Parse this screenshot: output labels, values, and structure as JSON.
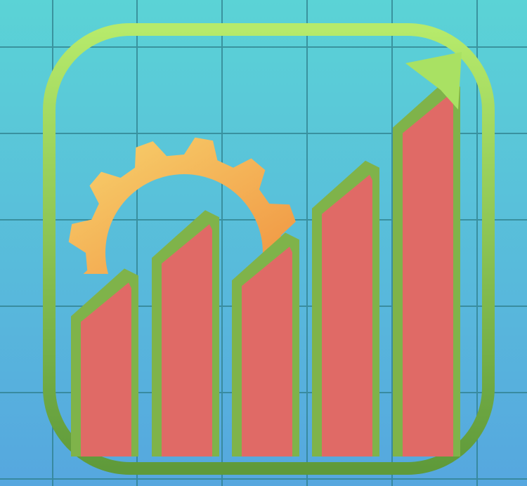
{
  "icon": {
    "name": "growth-chart-gear-app-icon",
    "background_gradient": [
      "#5bd3d6",
      "#56a7df"
    ],
    "grid_color": "#2f7f8c",
    "frame_gradient": [
      "#b6ea6b",
      "#5f9a3a"
    ],
    "bar_gradient": [
      "#7a1fe4",
      "#a54bb0",
      "#e06a66"
    ],
    "bar_cap_gradient": [
      "#b9ea6a",
      "#7fb34a"
    ],
    "gear_gradient": [
      "#f7d36e",
      "#f08a3a"
    ],
    "arrow_color": "#a9e163"
  },
  "bars": [
    {
      "name": "bar-1",
      "level": 0.39
    },
    {
      "name": "bar-2",
      "level": 0.52
    },
    {
      "name": "bar-3",
      "level": 0.47
    },
    {
      "name": "bar-4",
      "level": 0.63
    },
    {
      "name": "bar-5",
      "level": 0.81
    }
  ]
}
